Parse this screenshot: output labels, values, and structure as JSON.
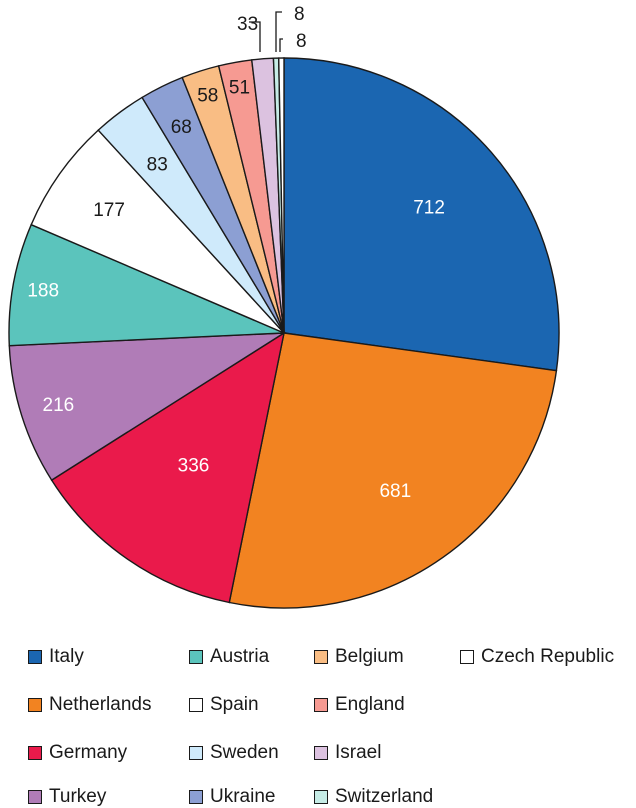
{
  "chart_data": {
    "type": "pie",
    "title": "",
    "slices": [
      {
        "label": "Italy",
        "value": 712,
        "color": "#1b66b1",
        "label_color": "#ffffff"
      },
      {
        "label": "Netherlands",
        "value": 681,
        "color": "#f28321",
        "label_color": "#ffffff"
      },
      {
        "label": "Germany",
        "value": 336,
        "color": "#ea1a4b",
        "label_color": "#ffffff"
      },
      {
        "label": "Turkey",
        "value": 216,
        "color": "#b07cb7",
        "label_color": "#ffffff"
      },
      {
        "label": "Austria",
        "value": 188,
        "color": "#5bc4bc",
        "label_color": "#ffffff"
      },
      {
        "label": "Spain",
        "value": 177,
        "color": "#ffffff",
        "label_color": "#1a1a1a"
      },
      {
        "label": "Sweden",
        "value": 83,
        "color": "#cfeafb",
        "label_color": "#1a1a1a"
      },
      {
        "label": "Ukraine",
        "value": 68,
        "color": "#8c9fd3",
        "label_color": "#1a1a1a"
      },
      {
        "label": "Belgium",
        "value": 58,
        "color": "#f9bd84",
        "label_color": "#1a1a1a"
      },
      {
        "label": "England",
        "value": 51,
        "color": "#f69a92",
        "label_color": "#1a1a1a"
      },
      {
        "label": "Israel",
        "value": 33,
        "color": "#dcc2e0",
        "label_color": "#1a1a1a"
      },
      {
        "label": "Switzerland",
        "value": 8,
        "color": "#c6ece6",
        "label_color": "#1a1a1a"
      },
      {
        "label": "Czech Republic",
        "value": 8,
        "color": "#ffffff",
        "label_color": "#1a1a1a"
      }
    ],
    "legend": {
      "placement": "bottom",
      "columns": [
        [
          "Italy",
          "Netherlands",
          "Germany",
          "Turkey"
        ],
        [
          "Austria",
          "Spain",
          "Sweden",
          "Ukraine"
        ],
        [
          "Belgium",
          "England",
          "Israel",
          "Switzerland"
        ],
        [
          "Czech Republic"
        ]
      ]
    }
  }
}
